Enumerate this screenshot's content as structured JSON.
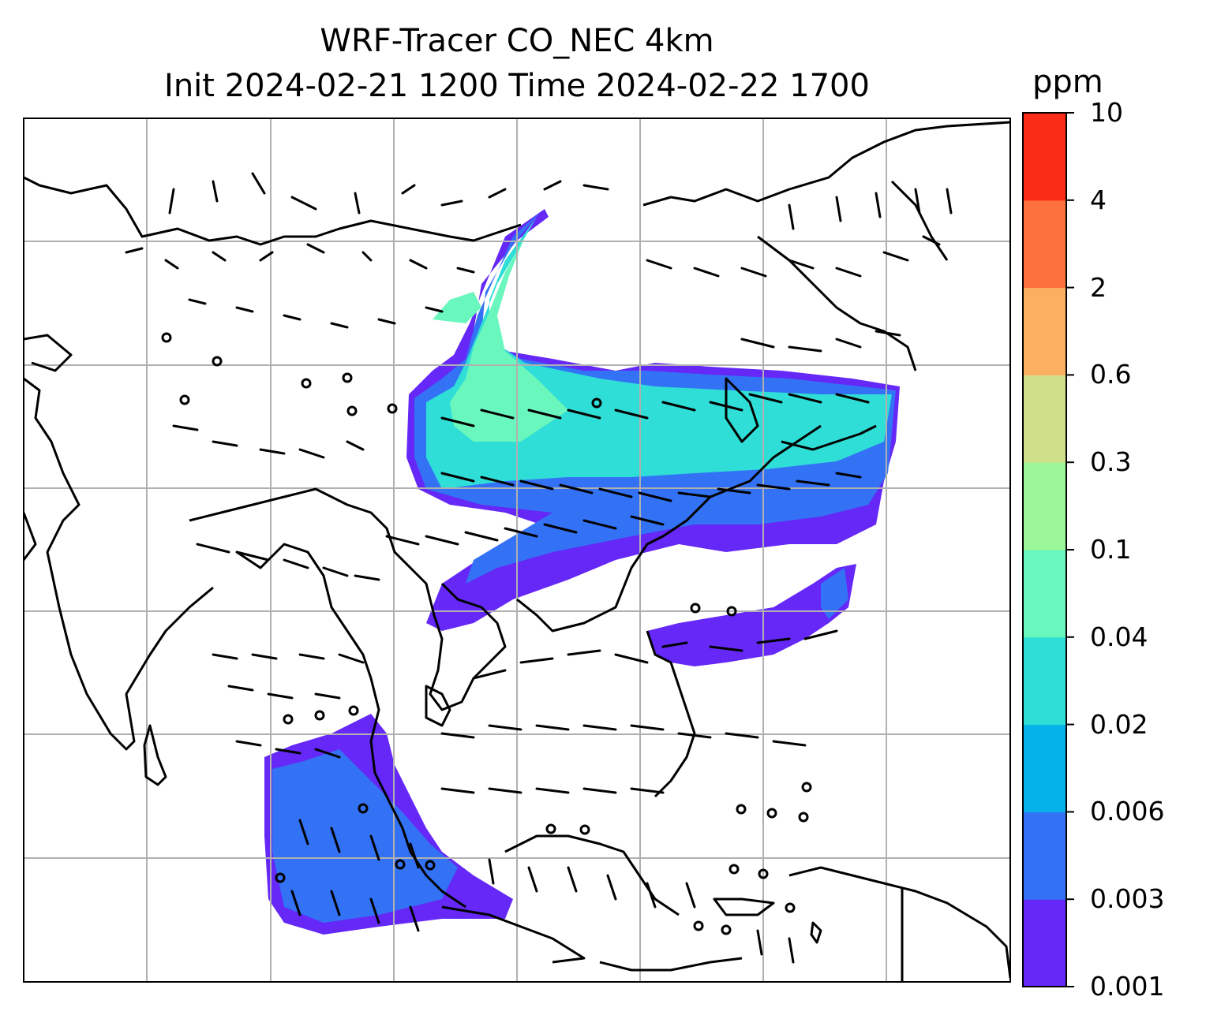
{
  "title": {
    "line1": "WRF-Tracer CO_NEC 4km",
    "line2": "Init 2024-02-21 1200 Time 2024-02-22 1700"
  },
  "colorbar": {
    "unit": "ppm",
    "ticks": [
      "0.001",
      "0.003",
      "0.006",
      "0.02",
      "0.04",
      "0.1",
      "0.3",
      "0.6",
      "2",
      "4",
      "10"
    ],
    "colors": [
      "#6528f7",
      "#3372f5",
      "#06b2ea",
      "#2fded6",
      "#6af7be",
      "#9cf79a",
      "#cfe08a",
      "#fcaf61",
      "#fd713c",
      "#fb2c17"
    ]
  },
  "map": {
    "colors": {
      "coastline": "#000000",
      "grid": "#b0b0b0",
      "barb": "#000000"
    },
    "shading_levels": {
      "band_outer": "#6528f7",
      "band_mid": "#3372f5",
      "band_inner": "#2fded6",
      "band_core": "#6af7be"
    }
  }
}
